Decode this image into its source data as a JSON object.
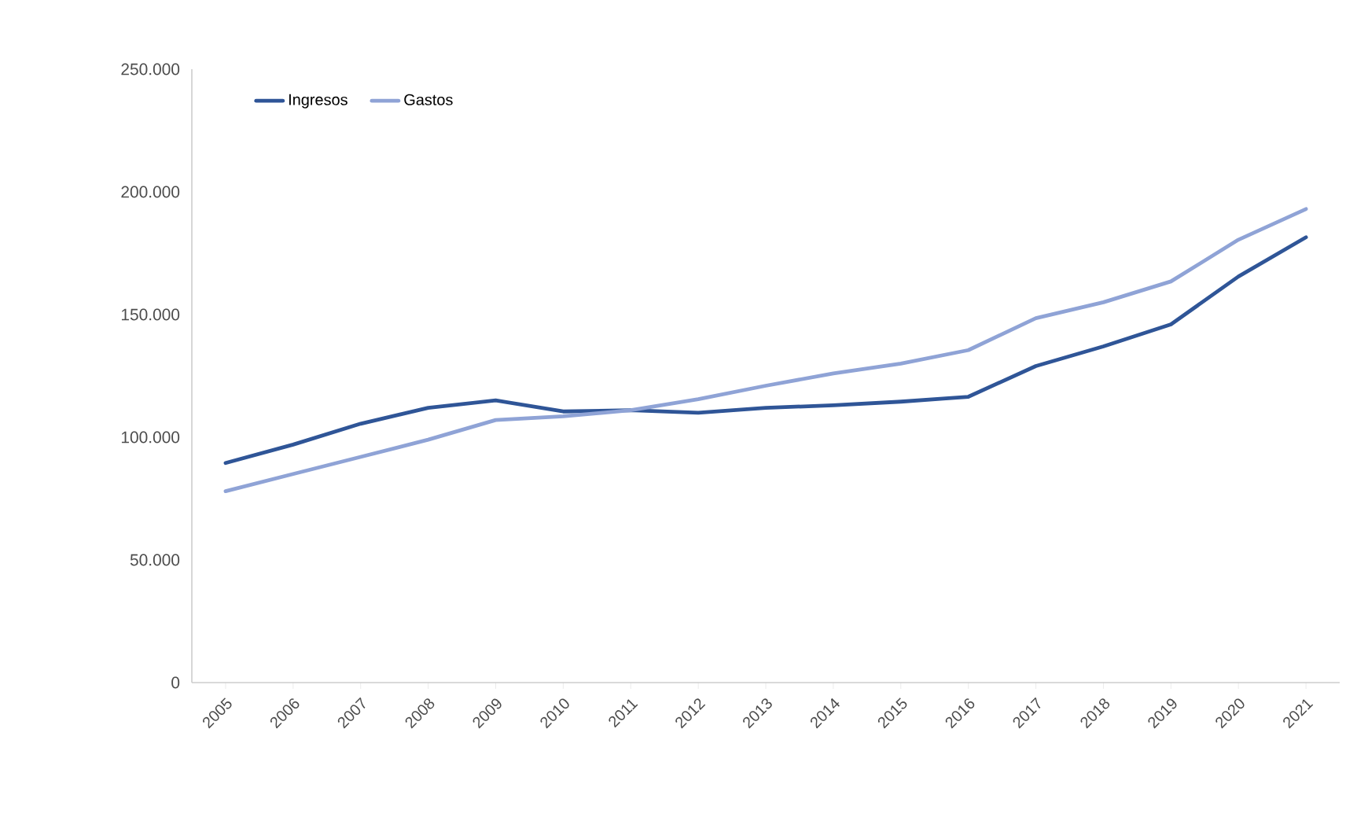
{
  "chart_data": {
    "type": "line",
    "categories": [
      "2005",
      "2006",
      "2007",
      "2008",
      "2009",
      "2010",
      "2011",
      "2012",
      "2013",
      "2014",
      "2015",
      "2016",
      "2017",
      "2018",
      "2019",
      "2020",
      "2021"
    ],
    "series": [
      {
        "name": "Ingresos",
        "color": "#2f5597",
        "values": [
          89500,
          97000,
          105500,
          112000,
          115000,
          110500,
          111000,
          110000,
          112000,
          113000,
          114500,
          116500,
          129000,
          137000,
          146000,
          165500,
          181500
        ]
      },
      {
        "name": "Gastos",
        "color": "#8fa3d6",
        "values": [
          78000,
          85000,
          92000,
          99000,
          107000,
          108500,
          111000,
          115500,
          121000,
          126000,
          130000,
          135500,
          148500,
          155000,
          163500,
          180500,
          193000
        ]
      }
    ],
    "ylim": [
      0,
      250000
    ],
    "yticks": [
      {
        "value": 0,
        "label": "0"
      },
      {
        "value": 50000,
        "label": "50.000"
      },
      {
        "value": 100000,
        "label": "100.000"
      },
      {
        "value": 150000,
        "label": "150.000"
      },
      {
        "value": 200000,
        "label": "200.000"
      },
      {
        "value": 250000,
        "label": "250.000"
      }
    ],
    "grid": false,
    "legend": "top left",
    "marker": "none",
    "line_style": "solid"
  }
}
